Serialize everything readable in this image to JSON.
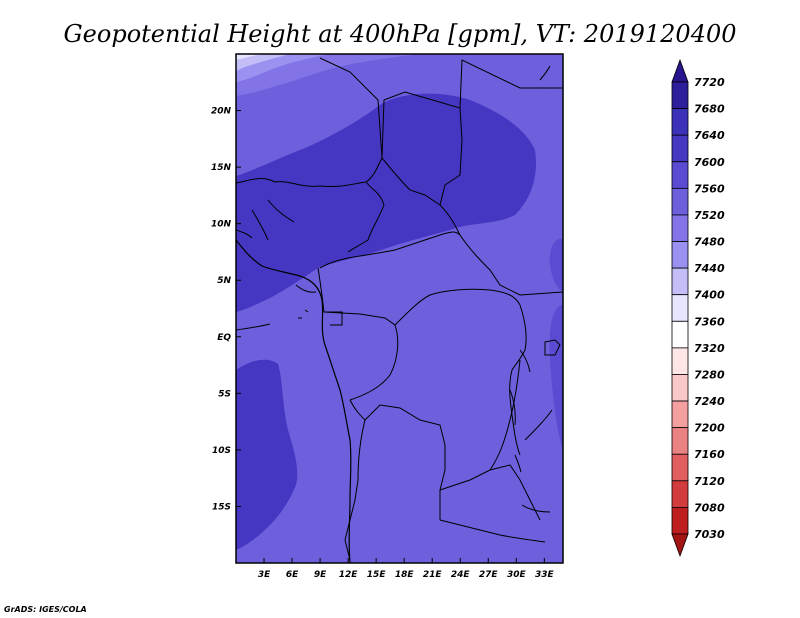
{
  "title": "Geopotential Height at 400hPa [gpm], VT: 2019120400",
  "credit": "GrADS: IGES/COLA",
  "map": {
    "lon_range": [
      0,
      35
    ],
    "lat_range": [
      -20,
      25
    ],
    "xticks": [
      "3E",
      "6E",
      "9E",
      "12E",
      "15E",
      "18E",
      "21E",
      "24E",
      "27E",
      "30E",
      "33E"
    ],
    "yticks": [
      "20N",
      "15N",
      "10N",
      "5N",
      "EQ",
      "5S",
      "10S",
      "15S"
    ]
  },
  "colorbar": {
    "labels": [
      "7720",
      "7680",
      "7640",
      "7600",
      "7560",
      "7520",
      "7480",
      "7440",
      "7400",
      "7360",
      "7320",
      "7280",
      "7240",
      "7200",
      "7160",
      "7120",
      "7080",
      "7030"
    ],
    "colors": [
      "#28148c",
      "#2d1e9b",
      "#3c32b9",
      "#4637c3",
      "#5a4bd2",
      "#6e5fdc",
      "#8273e6",
      "#9b91f0",
      "#c3bef8",
      "#e6e6ff",
      "#ffffff",
      "#ffe6e6",
      "#fac8c8",
      "#f5a0a0",
      "#eb8282",
      "#e15f5f",
      "#d23c3c",
      "#be1e1e",
      "#a51414"
    ]
  }
}
